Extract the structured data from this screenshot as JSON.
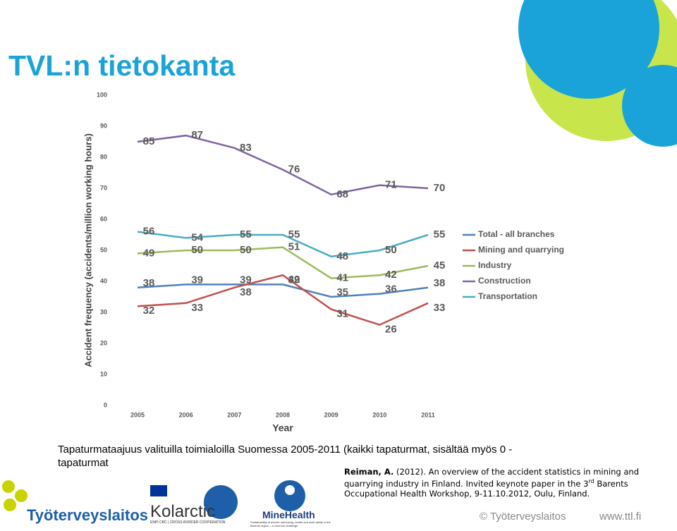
{
  "slide": {
    "title": "TVL:n tietokanta",
    "caption": "Tapaturmataajuus valituilla toimialoilla Suomessa 2005-2011 (kaikki tapaturmat, sisältää myös 0 - tapaturmat",
    "reference": {
      "author": "Reiman, A.",
      "text": "(2012). An overview of the accident statistics in mining and quarrying industry in Finland. Invited keynote paper in the 3",
      "sup": "rd",
      "rest": " Barents Occupational Health Workshop, 9-11.10.2012, Oulu, Finland."
    },
    "logos": {
      "ttl": "Työterveyslaitos",
      "kolarctic": "Kolarctic",
      "kolarctic_sub": "ENPI CBC | CROSS-BORDER COOPERATION",
      "minehealth": "MineHealth",
      "minehealth_sub": "Sustainability of miners' well-being, health and work ability in the Barents region – a common challenge"
    },
    "footer": {
      "copyright": "© Työterveyslaitos",
      "url": "www.ttl.fi"
    }
  },
  "chart_data": {
    "type": "line",
    "x_label": "Year",
    "y_label": "Accident frequency (accidents/million working hours)",
    "categories": [
      "2005",
      "2006",
      "2007",
      "2008",
      "2009",
      "2010",
      "2011"
    ],
    "series": [
      {
        "name": "Total - all branches",
        "color": "#4f81bd",
        "values": [
          38,
          39,
          39,
          39,
          35,
          36,
          38
        ]
      },
      {
        "name": "Mining and quarrying",
        "color": "#c0504d",
        "values": [
          32,
          33,
          38,
          42,
          31,
          26,
          33
        ]
      },
      {
        "name": "Industry",
        "color": "#9bbb59",
        "values": [
          49,
          50,
          50,
          51,
          41,
          42,
          45
        ]
      },
      {
        "name": "Construction",
        "color": "#8064a2",
        "values": [
          85,
          87,
          83,
          76,
          68,
          71,
          70
        ]
      },
      {
        "name": "Transportation",
        "color": "#4bacc6",
        "values": [
          56,
          54,
          55,
          55,
          48,
          50,
          55
        ]
      }
    ],
    "ylim": [
      0,
      100
    ],
    "yticks": [
      0,
      10,
      20,
      30,
      40,
      50,
      60,
      70,
      80,
      90,
      100
    ],
    "grid": false,
    "legend": "right",
    "data_labels": true
  }
}
